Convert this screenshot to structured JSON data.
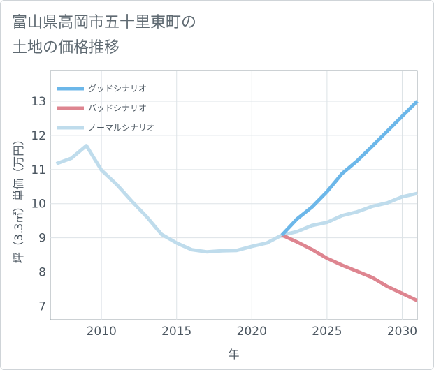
{
  "chart_data": {
    "type": "line",
    "title": "富山県高岡市五十里東町の\n土地の価格推移",
    "xlabel": "年",
    "ylabel": "坪（3.3㎡）単価（万円）",
    "xlim": [
      2006.6,
      2031
    ],
    "ylim": [
      6.6,
      13.9
    ],
    "xticks": [
      2010,
      2015,
      2020,
      2025,
      2030
    ],
    "yticks": [
      7,
      8,
      9,
      10,
      11,
      12,
      13
    ],
    "legend_position": "top-left",
    "series": [
      {
        "name": "グッドシナリオ",
        "color": "#6cb7e9",
        "x": [
          2022,
          2023,
          2024,
          2025,
          2026,
          2027,
          2028,
          2029,
          2030,
          2031
        ],
        "y": [
          9.08,
          9.55,
          9.9,
          10.35,
          10.88,
          11.25,
          11.68,
          12.12,
          12.56,
          13.0
        ]
      },
      {
        "name": "バッドシナリオ",
        "color": "#de8590",
        "x": [
          2022,
          2023,
          2024,
          2025,
          2026,
          2027,
          2028,
          2029,
          2030,
          2031
        ],
        "y": [
          9.08,
          8.88,
          8.66,
          8.4,
          8.2,
          8.02,
          7.84,
          7.58,
          7.37,
          7.16
        ]
      },
      {
        "name": "ノーマルシナリオ",
        "color": "#bfdcec",
        "x": [
          2007,
          2008,
          2009,
          2010,
          2011,
          2012,
          2013,
          2014,
          2015,
          2016,
          2017,
          2018,
          2019,
          2020,
          2021,
          2022,
          2023,
          2024,
          2025,
          2026,
          2027,
          2028,
          2029,
          2030,
          2031
        ],
        "y": [
          11.17,
          11.33,
          11.7,
          10.98,
          10.57,
          10.08,
          9.62,
          9.1,
          8.85,
          8.65,
          8.59,
          8.62,
          8.63,
          8.75,
          8.85,
          9.08,
          9.18,
          9.36,
          9.45,
          9.65,
          9.76,
          9.92,
          10.02,
          10.2,
          10.3
        ]
      }
    ]
  }
}
